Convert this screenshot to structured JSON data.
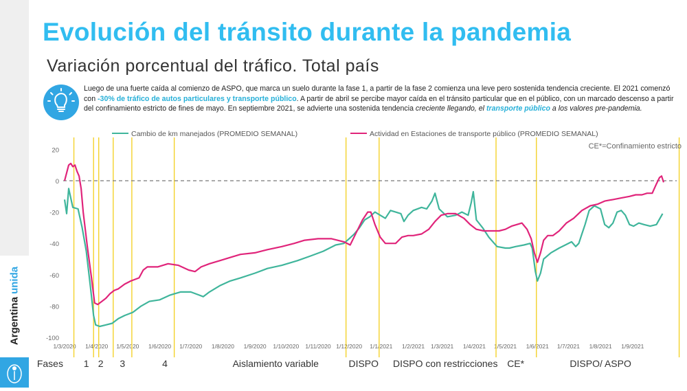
{
  "title": "Evolución del tránsito durante la pandemia",
  "subtitle": "Variación porcentual del tráfico. Total país",
  "description": {
    "p1": "Luego de una fuerte caída al comienzo de ASPO, que marca un suelo durante la fase 1, a partir de la fase 2 comienza una leve pero sostenida tendencia creciente. El 2021 comenzó con ",
    "hl1": "-30% de tráfico de autos particulares y transporte público",
    "p2": ". A partir de abril se percibe mayor caída en el tránsito particular que en el público, con un marcado descenso a partir del confinamiento estricto de fines de mayo. En septiembre 2021, se advierte una sostenida tendencia ",
    "em1": "creciente llegando, el ",
    "hl2": "transporte público",
    "em2": " a los valores pre-pandemia."
  },
  "brand": {
    "part1": "Argentina ",
    "part2": "unida"
  },
  "colors": {
    "title": "#31bdf0",
    "km": "#3fb59b",
    "transit": "#e0247a",
    "phase_line": "#f4d22a",
    "accent": "#31a6e3"
  },
  "chart_data": {
    "type": "line",
    "title": "",
    "xlabel": "",
    "ylabel": "",
    "ylim": [
      -100,
      20
    ],
    "yticks": [
      20,
      0,
      -20,
      -40,
      -60,
      -80,
      -100
    ],
    "baseline": 0,
    "note": "CE*=Confinamiento estricto",
    "x_ticks": [
      "1/3/2020",
      "1/4/2020",
      "1/5/2020",
      "1/6/2020",
      "1/7/2020",
      "1/8/2020",
      "1/9/2020",
      "1/10/2020",
      "1/11/2020",
      "1/12/2020",
      "1/1/2021",
      "1/2/2021",
      "1/3/2021",
      "1/4/2021",
      "1/5/2021",
      "1/6/2021",
      "1/7/2021",
      "1/8/2021",
      "1/9/2021"
    ],
    "x_tick_days": [
      0,
      31,
      61,
      92,
      122,
      153,
      184,
      214,
      245,
      275,
      306,
      337,
      365,
      396,
      426,
      457,
      487,
      518,
      549
    ],
    "x_range_days": [
      0,
      590
    ],
    "series": [
      {
        "name": "Cambio de km manejados (PROMEDIO SEMANAL)",
        "points": [
          [
            0,
            -12
          ],
          [
            2,
            -21
          ],
          [
            4,
            -5
          ],
          [
            8,
            -17
          ],
          [
            13,
            -18
          ],
          [
            17,
            -30
          ],
          [
            21,
            -45
          ],
          [
            25,
            -68
          ],
          [
            28,
            -86
          ],
          [
            30,
            -92
          ],
          [
            34,
            -93
          ],
          [
            40,
            -92
          ],
          [
            46,
            -91
          ],
          [
            52,
            -88
          ],
          [
            58,
            -86
          ],
          [
            66,
            -84
          ],
          [
            74,
            -80
          ],
          [
            82,
            -77
          ],
          [
            92,
            -76
          ],
          [
            102,
            -73
          ],
          [
            112,
            -71
          ],
          [
            122,
            -71
          ],
          [
            130,
            -73
          ],
          [
            134,
            -74
          ],
          [
            140,
            -71
          ],
          [
            150,
            -67
          ],
          [
            160,
            -64
          ],
          [
            170,
            -62
          ],
          [
            184,
            -59
          ],
          [
            196,
            -56
          ],
          [
            210,
            -54
          ],
          [
            225,
            -51
          ],
          [
            238,
            -48
          ],
          [
            250,
            -45
          ],
          [
            262,
            -41
          ],
          [
            270,
            -40
          ],
          [
            275,
            -37
          ],
          [
            280,
            -34
          ],
          [
            285,
            -30
          ],
          [
            290,
            -25
          ],
          [
            295,
            -23
          ],
          [
            300,
            -20
          ],
          [
            305,
            -22
          ],
          [
            310,
            -24
          ],
          [
            315,
            -19
          ],
          [
            320,
            -20
          ],
          [
            325,
            -21
          ],
          [
            328,
            -26
          ],
          [
            332,
            -22
          ],
          [
            337,
            -19
          ],
          [
            345,
            -17
          ],
          [
            350,
            -18
          ],
          [
            355,
            -13
          ],
          [
            358,
            -8
          ],
          [
            362,
            -18
          ],
          [
            370,
            -23
          ],
          [
            378,
            -22
          ],
          [
            384,
            -20
          ],
          [
            390,
            -22
          ],
          [
            393,
            -14
          ],
          [
            395,
            -7
          ],
          [
            398,
            -25
          ],
          [
            404,
            -30
          ],
          [
            410,
            -36
          ],
          [
            418,
            -42
          ],
          [
            426,
            -43
          ],
          [
            430,
            -43
          ],
          [
            436,
            -42
          ],
          [
            444,
            -41
          ],
          [
            450,
            -40
          ],
          [
            452,
            -43
          ],
          [
            455,
            -58
          ],
          [
            457,
            -64
          ],
          [
            460,
            -59
          ],
          [
            463,
            -50
          ],
          [
            470,
            -46
          ],
          [
            478,
            -43
          ],
          [
            484,
            -41
          ],
          [
            490,
            -39
          ],
          [
            494,
            -42
          ],
          [
            497,
            -40
          ],
          [
            500,
            -34
          ],
          [
            503,
            -28
          ],
          [
            507,
            -19
          ],
          [
            512,
            -16
          ],
          [
            518,
            -18
          ],
          [
            522,
            -28
          ],
          [
            526,
            -30
          ],
          [
            530,
            -27
          ],
          [
            534,
            -20
          ],
          [
            538,
            -19
          ],
          [
            542,
            -22
          ],
          [
            546,
            -28
          ],
          [
            550,
            -29
          ],
          [
            555,
            -27
          ],
          [
            560,
            -28
          ],
          [
            566,
            -29
          ],
          [
            572,
            -28
          ],
          [
            578,
            -21
          ]
        ]
      },
      {
        "name": "Actividad en Estaciones de transporte público (PROMEDIO SEMANAL)",
        "points": [
          [
            0,
            0
          ],
          [
            2,
            5
          ],
          [
            4,
            10
          ],
          [
            6,
            11
          ],
          [
            8,
            9
          ],
          [
            10,
            10
          ],
          [
            12,
            6
          ],
          [
            14,
            3
          ],
          [
            16,
            -5
          ],
          [
            18,
            -20
          ],
          [
            22,
            -42
          ],
          [
            26,
            -62
          ],
          [
            29,
            -78
          ],
          [
            32,
            -79
          ],
          [
            36,
            -77
          ],
          [
            40,
            -75
          ],
          [
            44,
            -72
          ],
          [
            48,
            -70
          ],
          [
            52,
            -69
          ],
          [
            58,
            -66
          ],
          [
            64,
            -64
          ],
          [
            72,
            -62
          ],
          [
            76,
            -57
          ],
          [
            80,
            -55
          ],
          [
            90,
            -55
          ],
          [
            100,
            -53
          ],
          [
            110,
            -54
          ],
          [
            120,
            -57
          ],
          [
            126,
            -58
          ],
          [
            132,
            -55
          ],
          [
            140,
            -53
          ],
          [
            150,
            -51
          ],
          [
            160,
            -49
          ],
          [
            170,
            -47
          ],
          [
            184,
            -46
          ],
          [
            196,
            -44
          ],
          [
            210,
            -42
          ],
          [
            222,
            -40
          ],
          [
            232,
            -38
          ],
          [
            245,
            -37
          ],
          [
            258,
            -37
          ],
          [
            270,
            -39
          ],
          [
            276,
            -41
          ],
          [
            282,
            -33
          ],
          [
            288,
            -25
          ],
          [
            293,
            -20
          ],
          [
            296,
            -20
          ],
          [
            300,
            -28
          ],
          [
            305,
            -36
          ],
          [
            310,
            -40
          ],
          [
            315,
            -40
          ],
          [
            320,
            -40
          ],
          [
            326,
            -36
          ],
          [
            332,
            -35
          ],
          [
            337,
            -35
          ],
          [
            345,
            -34
          ],
          [
            352,
            -31
          ],
          [
            358,
            -26
          ],
          [
            364,
            -22
          ],
          [
            370,
            -21
          ],
          [
            378,
            -21
          ],
          [
            386,
            -24
          ],
          [
            392,
            -28
          ],
          [
            398,
            -31
          ],
          [
            405,
            -32
          ],
          [
            412,
            -32
          ],
          [
            420,
            -32
          ],
          [
            426,
            -31
          ],
          [
            432,
            -29
          ],
          [
            437,
            -28
          ],
          [
            442,
            -27
          ],
          [
            447,
            -31
          ],
          [
            451,
            -37
          ],
          [
            454,
            -46
          ],
          [
            457,
            -52
          ],
          [
            460,
            -46
          ],
          [
            463,
            -38
          ],
          [
            467,
            -35
          ],
          [
            472,
            -35
          ],
          [
            478,
            -32
          ],
          [
            485,
            -27
          ],
          [
            492,
            -24
          ],
          [
            500,
            -19
          ],
          [
            508,
            -16
          ],
          [
            515,
            -15
          ],
          [
            522,
            -13
          ],
          [
            530,
            -12
          ],
          [
            538,
            -11
          ],
          [
            546,
            -10
          ],
          [
            552,
            -9
          ],
          [
            558,
            -9
          ],
          [
            563,
            -8
          ],
          [
            568,
            -8
          ],
          [
            572,
            -2
          ],
          [
            575,
            2
          ],
          [
            577,
            3
          ],
          [
            579,
            -1
          ]
        ]
      }
    ],
    "phase_lines_days": [
      9,
      28,
      33,
      47,
      65,
      106,
      272,
      304,
      417,
      456,
      594
    ],
    "phases": [
      {
        "label": "Fases",
        "day": -14
      },
      {
        "label": "1",
        "day": 21
      },
      {
        "label": "2",
        "day": 35
      },
      {
        "label": "3",
        "day": 56
      },
      {
        "label": "4",
        "day": 97
      },
      {
        "label": "Aislamiento variable",
        "day": 204
      },
      {
        "label": "DISPO",
        "day": 289
      },
      {
        "label": "DISPO con restricciones",
        "day": 368
      },
      {
        "label": "CE*",
        "day": 436
      },
      {
        "label": "DISPO/ ASPO",
        "day": 518
      }
    ]
  }
}
